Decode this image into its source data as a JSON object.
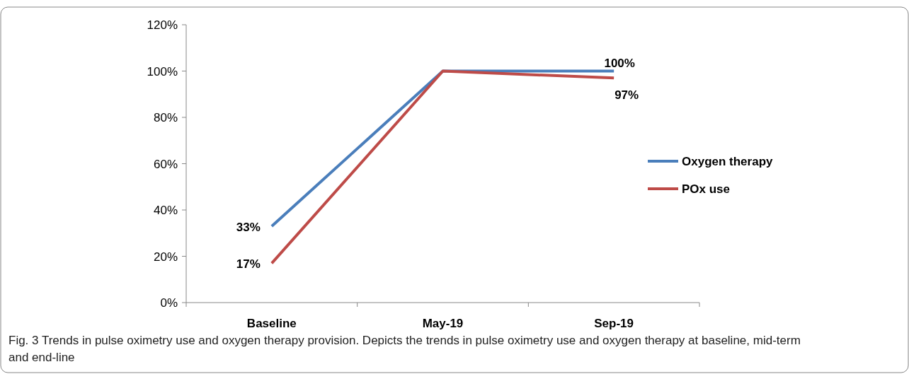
{
  "chart_data": {
    "type": "line",
    "categories": [
      "Baseline",
      "May-19",
      "Sep-19"
    ],
    "series": [
      {
        "name": "Oxygen therapy",
        "color": "#4a7ebb",
        "values": [
          33,
          100,
          100
        ],
        "value_labels": [
          "33%",
          null,
          "100%"
        ]
      },
      {
        "name": "POx use",
        "color": "#be4b48",
        "values": [
          17,
          100,
          97
        ],
        "value_labels": [
          "17%",
          null,
          "97%"
        ]
      }
    ],
    "ylim": [
      0,
      120
    ],
    "yticks": [
      {
        "value": 0,
        "label": "0%"
      },
      {
        "value": 20,
        "label": "20%"
      },
      {
        "value": 40,
        "label": "40%"
      },
      {
        "value": 60,
        "label": "60%"
      },
      {
        "value": 80,
        "label": "80%"
      },
      {
        "value": 100,
        "label": "100%"
      },
      {
        "value": 120,
        "label": "120%"
      }
    ],
    "grid": false,
    "legend": "right",
    "marker": "none",
    "line_style": "solid",
    "annotations": [
      "Fig. 3 Trends in pulse oximetry use and oxygen therapy provision. Depicts the trends in pulse oximetry use and oxygen therapy at baseline, mid-term and end-line"
    ]
  }
}
